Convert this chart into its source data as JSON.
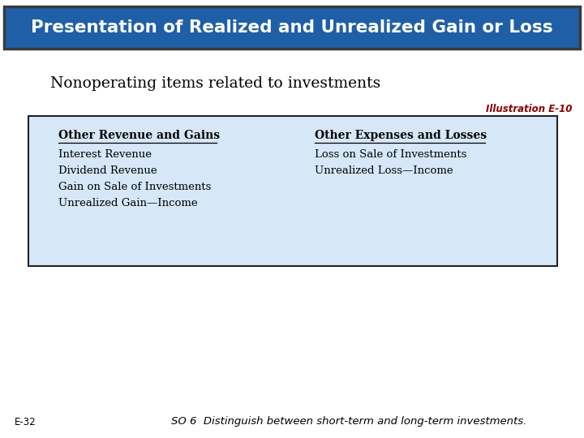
{
  "title": "Presentation of Realized and Unrealized Gain or Loss",
  "title_bg_color": "#1E5FA8",
  "title_text_color": "#FFFFFF",
  "title_border_color": "#3A3A3A",
  "subtitle": "Nonoperating items related to investments",
  "subtitle_color": "#000000",
  "illustration_label": "Illustration E-10",
  "illustration_color": "#8B0000",
  "table_bg_color": "#D6E8F7",
  "table_border_color": "#222222",
  "left_header": "Other Revenue and Gains",
  "right_header": "Other Expenses and Losses",
  "left_items": [
    "Interest Revenue",
    "Dividend Revenue",
    "Gain on Sale of Investments",
    "Unrealized Gain—Income"
  ],
  "right_items": [
    "Loss on Sale of Investments",
    "Unrealized Loss—Income"
  ],
  "footer_left": "E-32",
  "footer_right": "SO 6  Distinguish between short-term and long-term investments.",
  "footer_color": "#000000",
  "bg_color": "#FFFFFF",
  "fig_w": 7.2,
  "fig_h": 5.4,
  "dpi": 100
}
